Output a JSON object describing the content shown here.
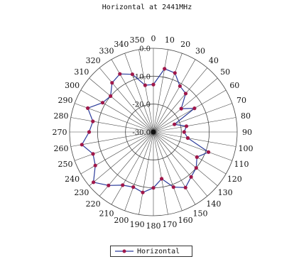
{
  "chart_data": {
    "type": "radar",
    "title": "Horizontal at 2441MHz",
    "angle_labels": [
      "0",
      "10",
      "20",
      "30",
      "40",
      "50",
      "60",
      "70",
      "80",
      "90",
      "100",
      "110",
      "120",
      "130",
      "140",
      "150",
      "160",
      "170",
      "180",
      "190",
      "200",
      "210",
      "220",
      "230",
      "240",
      "250",
      "260",
      "270",
      "280",
      "290",
      "300",
      "310",
      "320",
      "330",
      "340",
      "350"
    ],
    "radial_axis": {
      "min": -30,
      "max": 0,
      "rings": [
        -30,
        -20,
        -10,
        0
      ],
      "tick_labels": [
        "-30.0",
        "-20.0",
        "-10.0",
        "0.0"
      ]
    },
    "series": [
      {
        "name": "Horizontal",
        "color": "#2a3a9a",
        "marker_color": "#a0184a",
        "angles": [
          0,
          10,
          20,
          30,
          40,
          50,
          60,
          70,
          80,
          90,
          100,
          110,
          120,
          130,
          140,
          150,
          160,
          170,
          180,
          190,
          200,
          210,
          220,
          230,
          240,
          250,
          260,
          270,
          280,
          290,
          300,
          310,
          320,
          330,
          340,
          350
        ],
        "values": [
          -13,
          -7,
          -7.5,
          -11,
          -12,
          -17,
          -13,
          -22,
          -18,
          -19,
          -17.5,
          -9,
          -12,
          -10,
          -9,
          -7,
          -9,
          -13,
          -10,
          -8,
          -9,
          -8,
          -5,
          -2,
          -6,
          -7,
          -4,
          -7,
          -8,
          -5,
          -9,
          -10,
          -7,
          -6,
          -8,
          -13
        ]
      }
    ],
    "legend": {
      "position": "bottom",
      "label": "Horizontal"
    }
  }
}
